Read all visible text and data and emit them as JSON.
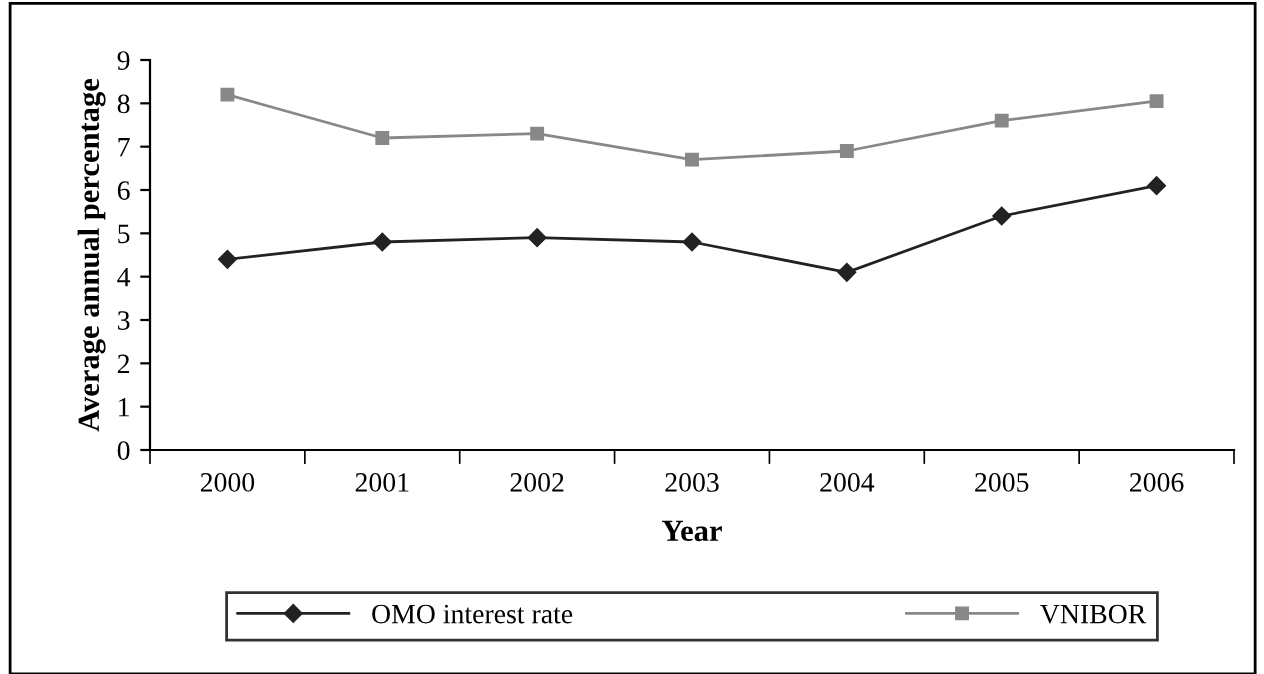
{
  "chart_data": {
    "type": "line",
    "xlabel": "Year",
    "ylabel": "Average annual percentage",
    "categories": [
      "2000",
      "2001",
      "2002",
      "2003",
      "2004",
      "2005",
      "2006"
    ],
    "series": [
      {
        "name": "OMO interest rate",
        "color": "#222222",
        "marker": "diamond",
        "values": [
          4.4,
          4.8,
          4.9,
          4.8,
          4.1,
          5.4,
          6.1
        ]
      },
      {
        "name": "VNIBOR",
        "color": "#888888",
        "marker": "square",
        "values": [
          8.2,
          7.2,
          7.3,
          6.7,
          6.9,
          7.6,
          8.05
        ]
      }
    ],
    "ylim": [
      0,
      9
    ],
    "yticks": [
      0,
      1,
      2,
      3,
      4,
      5,
      6,
      7,
      8,
      9
    ],
    "grid": false,
    "legend": "bottom"
  }
}
